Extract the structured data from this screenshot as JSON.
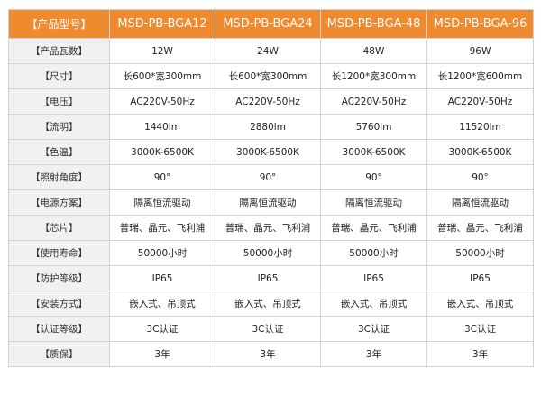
{
  "table": {
    "header": {
      "corner": "【产品型号】",
      "models": [
        "MSD-PB-BGA12",
        "MSD-PB-BGA24",
        "MSD-PB-BGA-48",
        "MSD-PB-BGA-96"
      ]
    },
    "rows": [
      {
        "label": "【产品瓦数】",
        "cells": [
          "12W",
          "24W",
          "48W",
          "96W"
        ]
      },
      {
        "label": "【尺寸】",
        "cells": [
          "长600*宽300mm",
          "长600*宽300mm",
          "长1200*宽300mm",
          "长1200*宽600mm"
        ]
      },
      {
        "label": "【电压】",
        "cells": [
          "AC220V-50Hz",
          "AC220V-50Hz",
          "AC220V-50Hz",
          "AC220V-50Hz"
        ]
      },
      {
        "label": "【流明】",
        "cells": [
          "1440lm",
          "2880lm",
          "5760lm",
          "11520lm"
        ]
      },
      {
        "label": "【色温】",
        "cells": [
          "3000K-6500K",
          "3000K-6500K",
          "3000K-6500K",
          "3000K-6500K"
        ]
      },
      {
        "label": "【照射角度】",
        "cells": [
          "90°",
          "90°",
          "90°",
          "90°"
        ]
      },
      {
        "label": "【电源方案】",
        "cells": [
          "隔离恒流驱动",
          "隔离恒流驱动",
          "隔离恒流驱动",
          "隔离恒流驱动"
        ]
      },
      {
        "label": "【芯片】",
        "cells": [
          "普瑞、晶元、飞利浦",
          "普瑞、晶元、飞利浦",
          "普瑞、晶元、飞利浦",
          "普瑞、晶元、飞利浦"
        ]
      },
      {
        "label": "【使用寿命】",
        "cells": [
          "50000小时",
          "50000小时",
          "50000小时",
          "50000小时"
        ]
      },
      {
        "label": "【防护等级】",
        "cells": [
          "IP65",
          "IP65",
          "IP65",
          "IP65"
        ]
      },
      {
        "label": "【安装方式】",
        "cells": [
          "嵌入式、吊顶式",
          "嵌入式、吊顶式",
          "嵌入式、吊顶式",
          "嵌入式、吊顶式"
        ]
      },
      {
        "label": "【认证等级】",
        "cells": [
          "3C认证",
          "3C认证",
          "3C认证",
          "3C认证"
        ]
      },
      {
        "label": "【质保】",
        "cells": [
          "3年",
          "3年",
          "3年",
          "3年"
        ]
      }
    ]
  },
  "colors": {
    "header_bg": "#f08a2e",
    "header_text": "#ffffff",
    "label_bg": "#f1f1f1",
    "border": "#d2d2d2"
  }
}
